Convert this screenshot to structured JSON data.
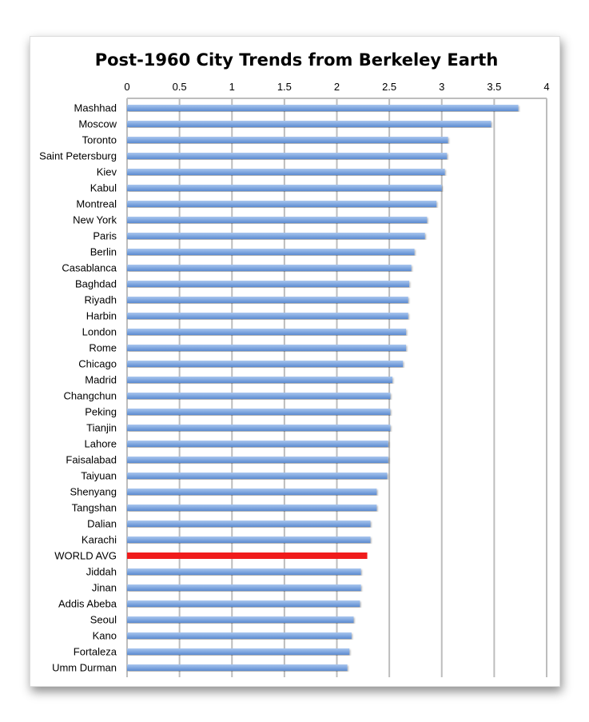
{
  "chart_data": {
    "type": "bar",
    "orientation": "horizontal",
    "title": "Post-1960 City Trends from Berkeley Earth",
    "xlabel": "",
    "ylabel": "",
    "xlim": [
      0,
      4
    ],
    "xticks": [
      "0",
      "0.5",
      "1",
      "1.5",
      "2",
      "2.5",
      "3",
      "3.5",
      "4"
    ],
    "grid": true,
    "categories": [
      "Mashhad",
      "Moscow",
      "Toronto",
      "Saint Petersburg",
      "Kiev",
      "Kabul",
      "Montreal",
      "New York",
      "Paris",
      "Berlin",
      "Casablanca",
      "Baghdad",
      "Riyadh",
      "Harbin",
      "London",
      "Rome",
      "Chicago",
      "Madrid",
      "Changchun",
      "Peking",
      "Tianjin",
      "Lahore",
      "Faisalabad",
      "Taiyuan",
      "Shenyang",
      "Tangshan",
      "Dalian",
      "Karachi",
      "WORLD AVG",
      "Jiddah",
      "Jinan",
      "Addis Abeba",
      "Seoul",
      "Kano",
      "Fortaleza",
      "Umm Durman"
    ],
    "values": [
      3.73,
      3.47,
      3.06,
      3.05,
      3.03,
      3.0,
      2.95,
      2.86,
      2.84,
      2.74,
      2.71,
      2.69,
      2.68,
      2.68,
      2.66,
      2.66,
      2.63,
      2.53,
      2.51,
      2.51,
      2.51,
      2.49,
      2.49,
      2.48,
      2.38,
      2.38,
      2.32,
      2.32,
      2.29,
      2.23,
      2.23,
      2.22,
      2.16,
      2.14,
      2.12,
      2.1
    ],
    "highlight": "WORLD AVG",
    "colors": {
      "bar": "#7ea6e0",
      "bar_dark": "#5b8bd0",
      "highlight": "#f01c1c",
      "grid": "#bdbdbd"
    }
  }
}
